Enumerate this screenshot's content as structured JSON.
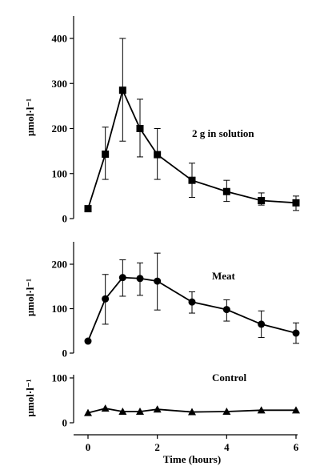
{
  "chart_data": [
    {
      "type": "line",
      "annotation": "2 g in solution",
      "ylabel": "µmol·l⁻¹",
      "yticks": [
        0,
        100,
        200,
        300,
        400
      ],
      "ylim": [
        0,
        460
      ],
      "xlim": [
        -0.4,
        6.3
      ],
      "marker": "square",
      "series": [
        {
          "x": [
            0,
            0.5,
            1,
            1.5,
            2,
            3,
            4,
            5,
            6
          ],
          "y": [
            22,
            143,
            285,
            200,
            142,
            85,
            60,
            40,
            35
          ],
          "error_upper": [
            null,
            203,
            400,
            265,
            200,
            123,
            85,
            57,
            50
          ],
          "error_lower": [
            null,
            87,
            172,
            137,
            87,
            47,
            38,
            30,
            18
          ]
        }
      ]
    },
    {
      "type": "line",
      "annotation": "Meat",
      "ylabel": "µmol·l⁻¹",
      "yticks": [
        0,
        100,
        200
      ],
      "ylim": [
        0,
        250
      ],
      "xlim": [
        -0.4,
        6.3
      ],
      "marker": "circle",
      "series": [
        {
          "x": [
            0,
            0.5,
            1,
            1.5,
            2,
            3,
            4,
            5,
            6
          ],
          "y": [
            27,
            122,
            170,
            168,
            162,
            115,
            98,
            65,
            45
          ],
          "error_upper": [
            null,
            177,
            210,
            203,
            225,
            138,
            120,
            95,
            68
          ],
          "error_lower": [
            null,
            65,
            128,
            130,
            97,
            90,
            72,
            35,
            22
          ]
        }
      ]
    },
    {
      "type": "line",
      "annotation": "Control",
      "ylabel": "µmol·l⁻¹",
      "yticks": [
        0,
        100
      ],
      "ylim": [
        0,
        100
      ],
      "xlim": [
        -0.4,
        6.3
      ],
      "marker": "triangle",
      "series": [
        {
          "x": [
            0,
            0.5,
            1,
            1.5,
            2,
            3,
            4,
            5,
            6
          ],
          "y": [
            22,
            32,
            25,
            25,
            30,
            24,
            25,
            28,
            28
          ]
        }
      ]
    }
  ],
  "xaxis": {
    "ticks": [
      0,
      2,
      4,
      6
    ],
    "label": "Time (hours)"
  }
}
